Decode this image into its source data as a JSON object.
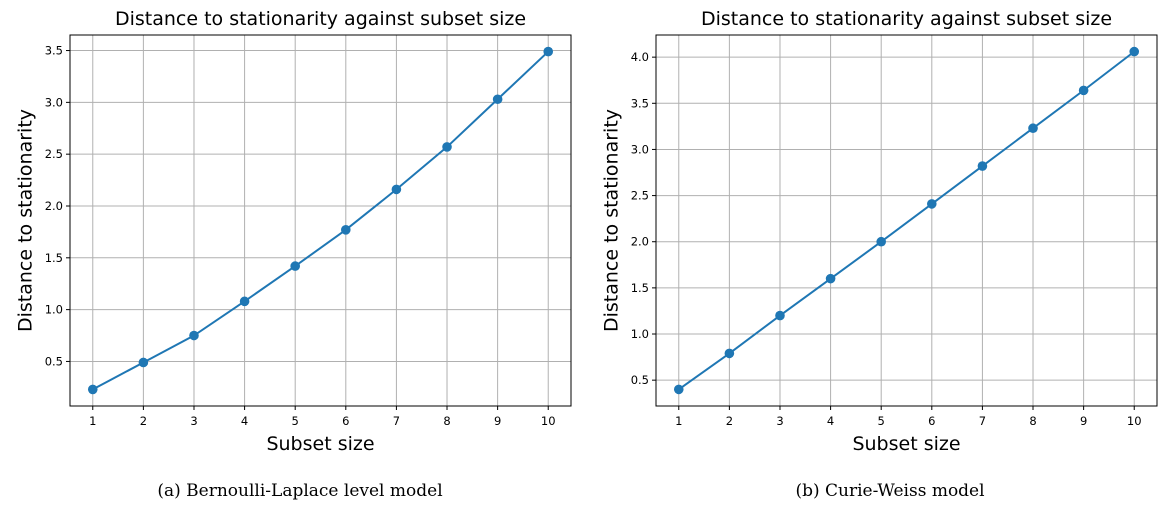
{
  "colors": {
    "series": "#1f77b4",
    "grid": "#b0b0b0"
  },
  "chart_data": [
    {
      "type": "line",
      "title": "Distance to stationarity against subset size",
      "xlabel": "Subset size",
      "ylabel": "Distance to stationarity",
      "caption": "(a) Bernoulli-Laplace level model",
      "x": [
        1,
        2,
        3,
        4,
        5,
        6,
        7,
        8,
        9,
        10
      ],
      "series": [
        {
          "values": [
            0.23,
            0.49,
            0.75,
            1.08,
            1.42,
            1.77,
            2.16,
            2.57,
            3.03,
            3.49
          ]
        }
      ],
      "xlim": [
        0.55,
        10.45
      ],
      "ylim": [
        0.07,
        3.65
      ],
      "xticks": [
        1,
        2,
        3,
        4,
        5,
        6,
        7,
        8,
        9,
        10
      ],
      "yticks": [
        "0.5",
        "1.0",
        "1.5",
        "2.0",
        "2.5",
        "3.0",
        "3.5"
      ],
      "grid": true,
      "marker": "circle"
    },
    {
      "type": "line",
      "title": "Distance to stationarity against subset size",
      "xlabel": "Subset size",
      "ylabel": "Distance to stationarity",
      "caption": "(b) Curie-Weiss model",
      "x": [
        1,
        2,
        3,
        4,
        5,
        6,
        7,
        8,
        9,
        10
      ],
      "series": [
        {
          "values": [
            0.4,
            0.79,
            1.2,
            1.6,
            2.0,
            2.41,
            2.82,
            3.23,
            3.64,
            4.06
          ]
        }
      ],
      "xlim": [
        0.55,
        10.45
      ],
      "ylim": [
        0.22,
        4.24
      ],
      "xticks": [
        1,
        2,
        3,
        4,
        5,
        6,
        7,
        8,
        9,
        10
      ],
      "yticks": [
        "0.5",
        "1.0",
        "1.5",
        "2.0",
        "2.5",
        "3.0",
        "3.5",
        "4.0"
      ],
      "grid": true,
      "marker": "circle"
    }
  ]
}
